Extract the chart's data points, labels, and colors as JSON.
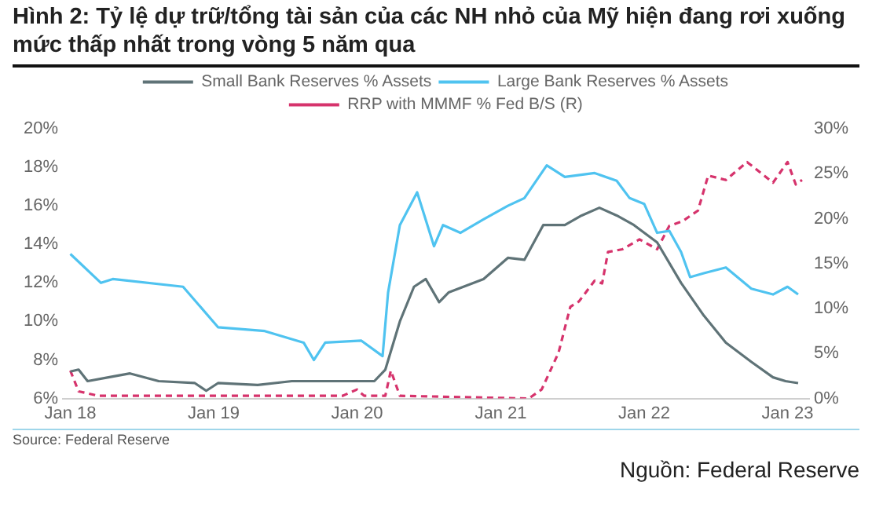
{
  "chart_data": {
    "type": "line",
    "title": "Hình 2: Tỷ lệ dự trữ/tổng tài sản của các NH nhỏ của Mỹ hiện đang rơi xuống mức thấp nhất trong vòng 5 năm qua",
    "annotations": [
      "Source: Federal Reserve",
      "Nguồn: Federal Reserve"
    ],
    "xlim": [
      "2017-12-13",
      "2023-02-25"
    ],
    "xticks": [
      {
        "value": "2018-01",
        "label": "Jan 18"
      },
      {
        "value": "2019-01",
        "label": "Jan 19"
      },
      {
        "value": "2020-01",
        "label": "Jan 20"
      },
      {
        "value": "2021-01",
        "label": "Jan 21"
      },
      {
        "value": "2022-01",
        "label": "Jan 22"
      },
      {
        "value": "2023-01",
        "label": "Jan 23"
      }
    ],
    "ylim": [
      6,
      20
    ],
    "yticks": [
      {
        "value": 6,
        "label": "6%"
      },
      {
        "value": 8,
        "label": "8%"
      },
      {
        "value": 10,
        "label": "10%"
      },
      {
        "value": 12,
        "label": "12%"
      },
      {
        "value": 14,
        "label": "14%"
      },
      {
        "value": 16,
        "label": "16%"
      },
      {
        "value": 18,
        "label": "18%"
      },
      {
        "value": 20,
        "label": "20%"
      }
    ],
    "y2lim": [
      0,
      30
    ],
    "y2ticks": [
      {
        "value": 0,
        "label": "0%"
      },
      {
        "value": 5,
        "label": "5%"
      },
      {
        "value": 10,
        "label": "10%"
      },
      {
        "value": 15,
        "label": "15%"
      },
      {
        "value": 20,
        "label": "20%"
      },
      {
        "value": 25,
        "label": "25%"
      },
      {
        "value": 30,
        "label": "30%"
      }
    ],
    "grid": false,
    "legend": "top",
    "marker": "none",
    "series": [
      {
        "name": "Small Bank Reserves % Assets",
        "color": "#5f7377",
        "line_style": "solid",
        "x": [
          "2018-01-01",
          "2018-01-22",
          "2018-02-14",
          "2018-04-08",
          "2018-06-02",
          "2018-08-14",
          "2018-11-14",
          "2018-12-13",
          "2019-01-12",
          "2019-04-23",
          "2019-07-19",
          "2019-11-03",
          "2020-02-14",
          "2020-03-13",
          "2020-04-19",
          "2020-05-25",
          "2020-06-24",
          "2020-07-28",
          "2020-08-21",
          "2020-11-18",
          "2021-01-19",
          "2021-03-02",
          "2021-04-19",
          "2021-06-13",
          "2021-07-26",
          "2021-09-09",
          "2021-10-23",
          "2021-12-06",
          "2022-02-03",
          "2022-04-05",
          "2022-06-02",
          "2022-07-28",
          "2022-10-01",
          "2022-11-25",
          "2022-12-27",
          "2023-01-28"
        ],
        "values": [
          7.4,
          7.5,
          6.9,
          7.1,
          7.3,
          6.9,
          6.8,
          6.4,
          6.8,
          6.7,
          6.9,
          6.9,
          6.9,
          7.5,
          10.0,
          11.8,
          12.2,
          11.0,
          11.5,
          12.2,
          13.3,
          13.2,
          15.0,
          15.0,
          15.5,
          15.9,
          15.5,
          15.0,
          14.1,
          12.0,
          10.3,
          8.9,
          7.9,
          7.1,
          6.9,
          6.8
        ]
      },
      {
        "name": "Large Bank Reserves % Assets",
        "color": "#4fc3f0",
        "line_style": "solid",
        "x": [
          "2018-01-01",
          "2018-03-20",
          "2018-04-19",
          "2018-10-15",
          "2019-01-12",
          "2019-05-11",
          "2019-08-18",
          "2019-09-13",
          "2019-10-12",
          "2020-01-12",
          "2020-03-06",
          "2020-03-20",
          "2020-04-19",
          "2020-06-02",
          "2020-07-15",
          "2020-08-07",
          "2020-09-20",
          "2020-11-18",
          "2021-01-19",
          "2021-03-02",
          "2021-04-28",
          "2021-06-13",
          "2021-08-28",
          "2021-10-23",
          "2021-11-25",
          "2022-01-01",
          "2022-02-03",
          "2022-03-06",
          "2022-04-05",
          "2022-04-28",
          "2022-06-02",
          "2022-07-28",
          "2022-10-01",
          "2022-11-25",
          "2023-01-01",
          "2023-01-28"
        ],
        "values": [
          13.5,
          12.0,
          12.2,
          11.8,
          9.7,
          9.5,
          8.9,
          8.0,
          8.9,
          9.0,
          8.2,
          11.5,
          15.0,
          16.7,
          13.9,
          15.0,
          14.6,
          15.3,
          16.0,
          16.4,
          18.1,
          17.5,
          17.7,
          17.3,
          16.4,
          16.1,
          14.6,
          14.7,
          13.6,
          12.3,
          12.5,
          12.8,
          11.7,
          11.4,
          11.8,
          11.4
        ]
      },
      {
        "name": "RRP with MMMF % Fed B/S (R)",
        "color": "#d6336c",
        "line_style": "dashed",
        "axis": "y2",
        "x": [
          "2018-01-01",
          "2018-01-22",
          "2018-03-13",
          "2019-01-01",
          "2019-11-25",
          "2020-01-01",
          "2020-01-19",
          "2020-03-13",
          "2020-03-27",
          "2020-04-19",
          "2021-03-13",
          "2021-04-15",
          "2021-05-28",
          "2021-06-27",
          "2021-07-19",
          "2021-08-28",
          "2021-09-16",
          "2021-10-01",
          "2021-11-07",
          "2021-12-20",
          "2022-02-03",
          "2022-03-06",
          "2022-04-08",
          "2022-05-18",
          "2022-06-13",
          "2022-07-28",
          "2022-09-20",
          "2022-11-25",
          "2023-01-01",
          "2023-01-22",
          "2023-02-07"
        ],
        "values": [
          3.1,
          0.8,
          0.3,
          0.3,
          0.3,
          1.0,
          0.3,
          0.3,
          3.1,
          0.3,
          0.0,
          1.0,
          5.1,
          10.2,
          10.8,
          13.1,
          12.8,
          16.3,
          16.6,
          17.7,
          16.6,
          19.2,
          19.7,
          20.9,
          24.8,
          24.3,
          26.3,
          24.0,
          26.3,
          23.8,
          24.3
        ]
      }
    ]
  }
}
